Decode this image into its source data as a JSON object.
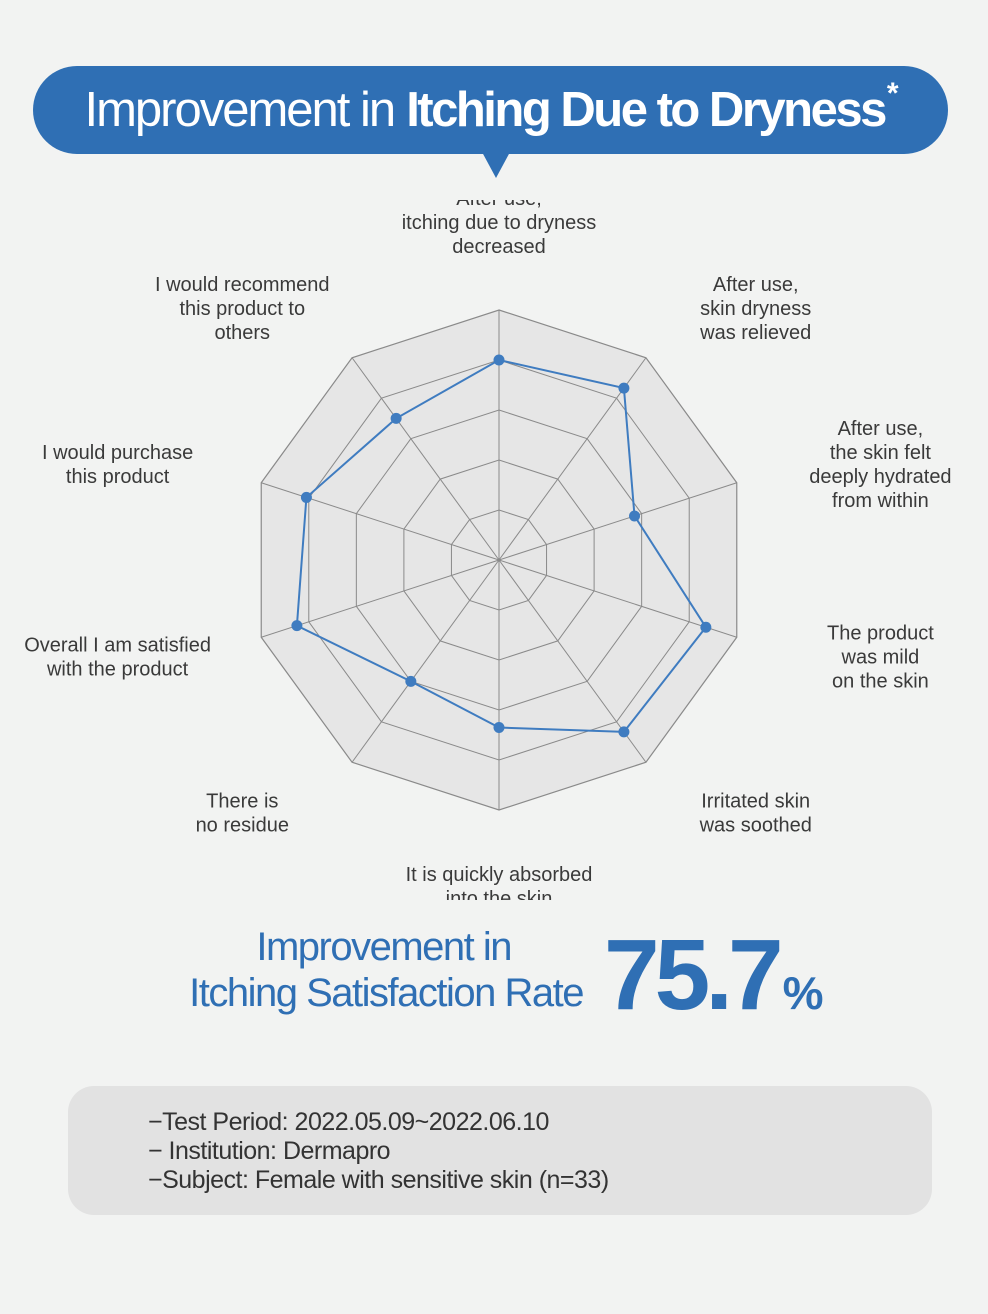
{
  "header": {
    "title_light": "Improvement in",
    "title_bold": "Itching Due to Dryness",
    "title_mark": "*"
  },
  "chart_data": {
    "type": "radar",
    "axes": [
      [
        "After use,",
        "itching due to dryness",
        "decreased"
      ],
      [
        "After use,",
        "skin dryness",
        "was relieved"
      ],
      [
        "After use,",
        "the skin felt",
        "deeply hydrated",
        "from within"
      ],
      [
        "The product",
        "was mild",
        "on the skin"
      ],
      [
        "Irritated skin",
        "was soothed"
      ],
      [
        "It is quickly absorbed",
        "into the skin"
      ],
      [
        "There is",
        "no residue"
      ],
      [
        "Overall I am satisfied",
        "with the product"
      ],
      [
        "I would purchase",
        "this product"
      ],
      [
        "I would recommend",
        "this product to",
        "others"
      ]
    ],
    "values": [
      0.8,
      0.85,
      0.57,
      0.87,
      0.85,
      0.67,
      0.6,
      0.85,
      0.81,
      0.7
    ],
    "rlim": [
      0,
      1
    ],
    "grid_rings": 5,
    "grid": true,
    "series_color": "#3f7cc0",
    "grid_color": "#8a8a8a",
    "fill_color": "#e6e6e6"
  },
  "stat": {
    "line1": "Improvement in",
    "line2": "Itching Satisfaction Rate",
    "value": "75.7",
    "unit": "%"
  },
  "info": {
    "period": "−Test Period: 2022.05.09~2022.06.10",
    "institution": "− Institution: Dermapro",
    "subject": "−Subject: Female with sensitive skin (n=33)"
  }
}
